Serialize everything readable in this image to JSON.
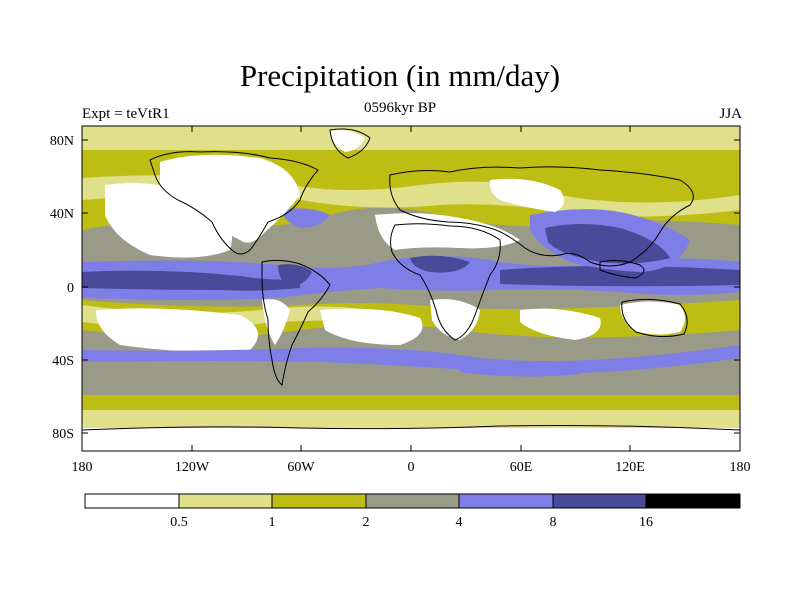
{
  "title": "Precipitation (in mm/day)",
  "subtitle_center": "0596kyr BP",
  "subtitle_left": "Expt = teVtR1",
  "subtitle_right": "JJA",
  "lat_ticks": [
    "80N",
    "40N",
    "0",
    "40S",
    "80S"
  ],
  "lon_ticks": [
    "180",
    "120W",
    "60W",
    "0",
    "60E",
    "120E",
    "180"
  ],
  "colorbar": {
    "labels": [
      "0.5",
      "1",
      "2",
      "4",
      "8",
      "16"
    ],
    "colors": [
      "#ffffff",
      "#e0e08a",
      "#bdbd14",
      "#9a9a88",
      "#7e7ee6",
      "#4a4a9a",
      "#000000"
    ]
  },
  "map_colors": {
    "white": "#ffffff",
    "pale_yellow": "#e0e08a",
    "olive": "#bdbd14",
    "gray": "#9a9a88",
    "periwinkle": "#7e7ee6",
    "navy": "#4a4a9a",
    "coast": "#000000"
  }
}
